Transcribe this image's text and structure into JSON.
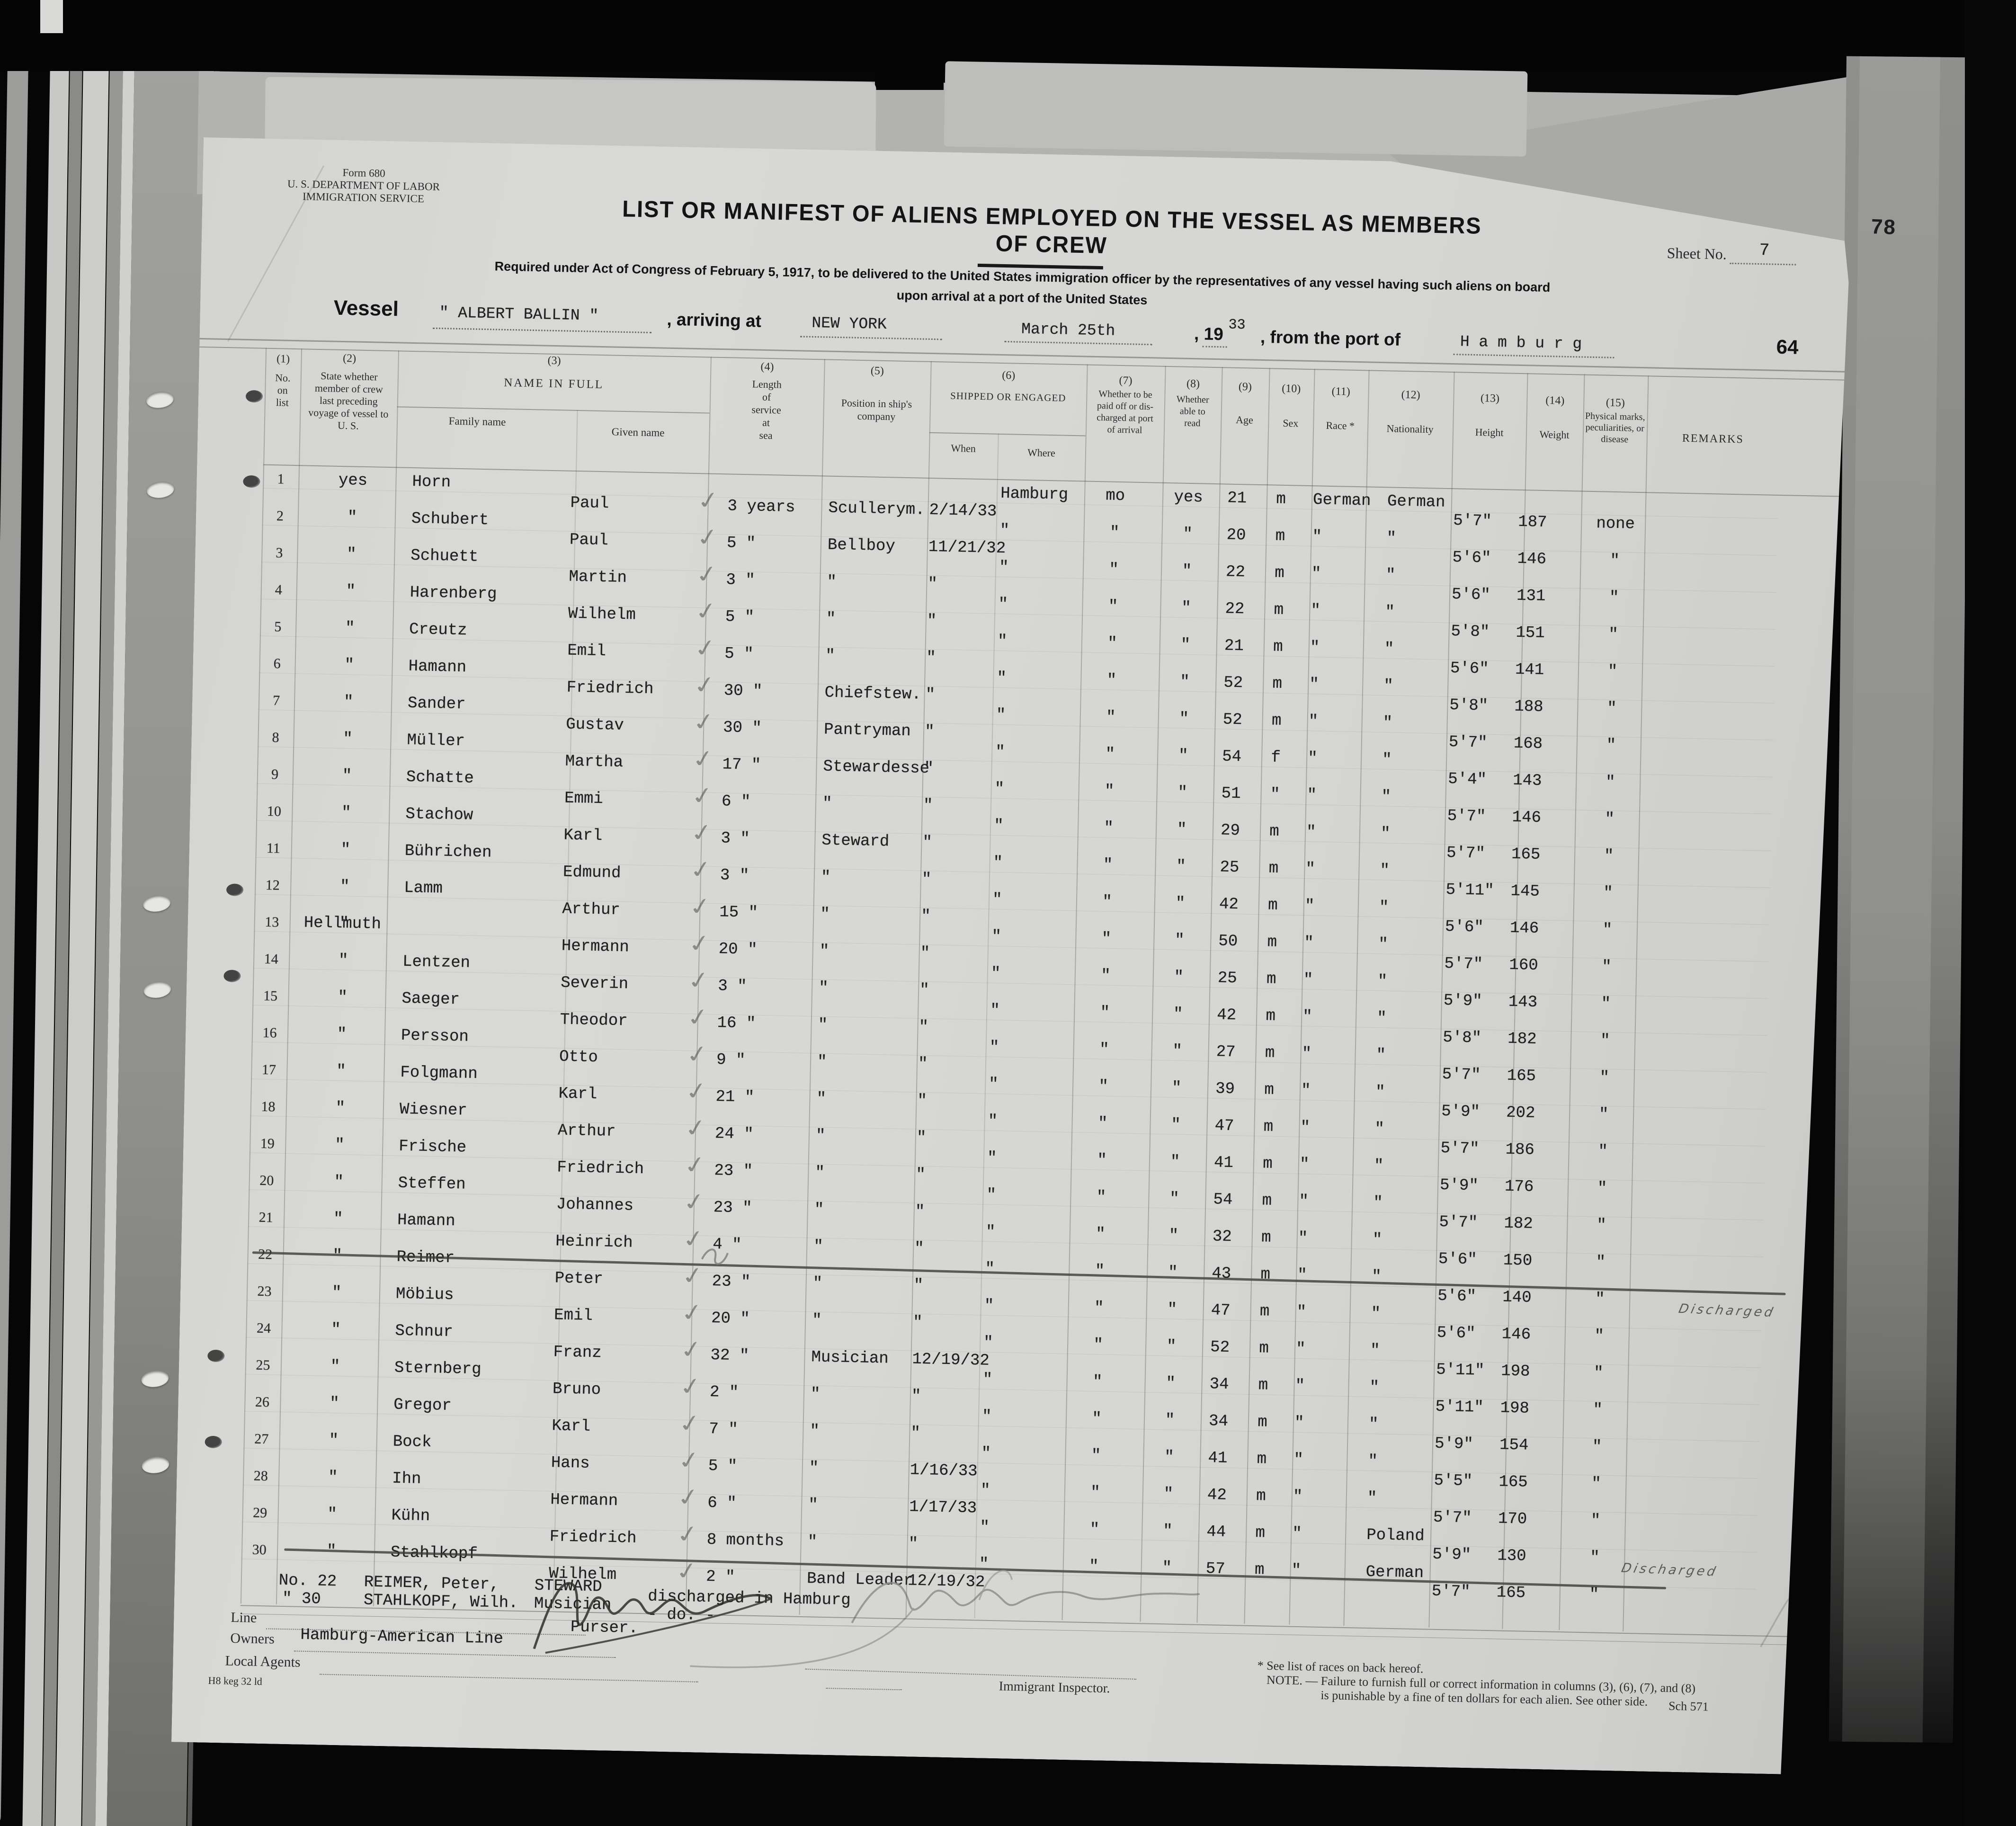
{
  "meta": {
    "colors": {
      "paper": "#d6d6d4",
      "typed_ink": "#1f1f1f",
      "printed_ink": "#2b2b2b",
      "pencil": "#8e8e8c"
    }
  },
  "form": {
    "form_no": "Form 680",
    "agency1": "U. S. DEPARTMENT OF LABOR",
    "agency2": "IMMIGRATION SERVICE",
    "title": "LIST OR MANIFEST OF ALIENS EMPLOYED ON THE VESSEL AS MEMBERS OF CREW",
    "subtitle1": "Required under Act of Congress of February 5, 1917, to be delivered to the United States immigration officer by the representatives of any vessel having such aliens on board",
    "subtitle2": "upon arrival at a port of the United States",
    "sheet_label": "Sheet No.",
    "sheet_value": "7",
    "page_stamp": "78",
    "page_number": "64",
    "small_mark": "o",
    "vessel_label": "Vessel",
    "vessel_value": "\" ALBERT BALLIN \"",
    "arriving_label": ", arriving at",
    "arriving_value": "NEW YORK",
    "date_value": "March  25th",
    "year_label": ", 19",
    "year_value": "33",
    "port_label": ", from the port of",
    "port_value": "H a m b u r g"
  },
  "columns": {
    "c1_num": "(1)",
    "c1": "No.\non\nlist",
    "c2_num": "(2)",
    "c2": "State whether\nmember of crew\nlast preceding\nvoyage of vessel to\nU. S.",
    "c3_num": "(3)",
    "c3": "NAME IN FULL",
    "c3a": "Family name",
    "c3b": "Given name",
    "c4_num": "(4)",
    "c4": "Length\nof\nservice\nat\nsea",
    "c5_num": "(5)",
    "c5": "Position in ship's\ncompany",
    "c6_num": "(6)",
    "c6": "SHIPPED OR ENGAGED",
    "c6a": "When",
    "c6b": "Where",
    "c7_num": "(7)",
    "c7": "Whether to be\npaid off or dis-\ncharged at port\nof arrival",
    "c8_num": "(8)",
    "c8": "Whether\nable to\nread",
    "c9_num": "(9)",
    "c9": "Age",
    "c10_num": "(10)",
    "c10": "Sex",
    "c11_num": "(11)",
    "c11": "Race *",
    "c12_num": "(12)",
    "c12": "Nationality",
    "c13_num": "(13)",
    "c13": "Height",
    "c14_num": "(14)",
    "c14": "Weight",
    "c15_num": "(15)",
    "c15": "Physical marks,\npeculiarities, or\ndisease",
    "c16": "REMARKS"
  },
  "rows": [
    {
      "no": "1",
      "state": "yes",
      "family": "Horn",
      "given": "Paul",
      "svc": "3 years",
      "pos": "Scullerym.",
      "when": "2/14/33",
      "where": "Hamburg",
      "paid": "mo",
      "read": "yes",
      "age": "21",
      "sex": "m",
      "race": "German",
      "nat": "German",
      "ht": "5'7\"",
      "wt": "187",
      "marks": "none",
      "struck": false
    },
    {
      "no": "2",
      "state": "\"",
      "family": "Schubert",
      "given": "Paul",
      "svc": "5 \"",
      "pos": "Bellboy",
      "when": "11/21/32",
      "where": "\"",
      "paid": "\"",
      "read": "\"",
      "age": "20",
      "sex": "m",
      "race": "\"",
      "nat": "\"",
      "ht": "5'6\"",
      "wt": "146",
      "marks": "\"",
      "struck": false
    },
    {
      "no": "3",
      "state": "\"",
      "family": "Schuett",
      "given": "Martin",
      "svc": "3 \"",
      "pos": "\"",
      "when": "\"",
      "where": "\"",
      "paid": "\"",
      "read": "\"",
      "age": "22",
      "sex": "m",
      "race": "\"",
      "nat": "\"",
      "ht": "5'6\"",
      "wt": "131",
      "marks": "\"",
      "struck": false
    },
    {
      "no": "4",
      "state": "\"",
      "family": "Harenberg",
      "given": "Wilhelm",
      "svc": "5 \"",
      "pos": "\"",
      "when": "\"",
      "where": "\"",
      "paid": "\"",
      "read": "\"",
      "age": "22",
      "sex": "m",
      "race": "\"",
      "nat": "\"",
      "ht": "5'8\"",
      "wt": "151",
      "marks": "\"",
      "struck": false
    },
    {
      "no": "5",
      "state": "\"",
      "family": "Creutz",
      "given": "Emil",
      "svc": "5 \"",
      "pos": "\"",
      "when": "\"",
      "where": "\"",
      "paid": "\"",
      "read": "\"",
      "age": "21",
      "sex": "m",
      "race": "\"",
      "nat": "\"",
      "ht": "5'6\"",
      "wt": "141",
      "marks": "\"",
      "struck": false
    },
    {
      "no": "6",
      "state": "\"",
      "family": "Hamann",
      "given": "Friedrich",
      "svc": "30 \"",
      "pos": "Chiefstew.",
      "when": "\"",
      "where": "\"",
      "paid": "\"",
      "read": "\"",
      "age": "52",
      "sex": "m",
      "race": "\"",
      "nat": "\"",
      "ht": "5'8\"",
      "wt": "188",
      "marks": "\"",
      "struck": false
    },
    {
      "no": "7",
      "state": "\"",
      "family": "Sander",
      "given": "Gustav",
      "svc": "30 \"",
      "pos": "Pantryman",
      "when": "\"",
      "where": "\"",
      "paid": "\"",
      "read": "\"",
      "age": "52",
      "sex": "m",
      "race": "\"",
      "nat": "\"",
      "ht": "5'7\"",
      "wt": "168",
      "marks": "\"",
      "struck": false
    },
    {
      "no": "8",
      "state": "\"",
      "family": "Müller",
      "given": "Martha",
      "svc": "17 \"",
      "pos": "Stewardesse",
      "when": "\"",
      "where": "\"",
      "paid": "\"",
      "read": "\"",
      "age": "54",
      "sex": "f",
      "race": "\"",
      "nat": "\"",
      "ht": "5'4\"",
      "wt": "143",
      "marks": "\"",
      "struck": false
    },
    {
      "no": "9",
      "state": "\"",
      "family": "Schatte",
      "given": "Emmi",
      "svc": "6 \"",
      "pos": "\"",
      "when": "\"",
      "where": "\"",
      "paid": "\"",
      "read": "\"",
      "age": "51",
      "sex": "\"",
      "race": "\"",
      "nat": "\"",
      "ht": "5'7\"",
      "wt": "146",
      "marks": "\"",
      "struck": false
    },
    {
      "no": "10",
      "state": "\"",
      "family": "Stachow",
      "given": "Karl",
      "svc": "3 \"",
      "pos": "Steward",
      "when": "\"",
      "where": "\"",
      "paid": "\"",
      "read": "\"",
      "age": "29",
      "sex": "m",
      "race": "\"",
      "nat": "\"",
      "ht": "5'7\"",
      "wt": "165",
      "marks": "\"",
      "struck": false
    },
    {
      "no": "11",
      "state": "\"",
      "family": "Bührichen",
      "given": "Edmund",
      "svc": "3 \"",
      "pos": "\"",
      "when": "\"",
      "where": "\"",
      "paid": "\"",
      "read": "\"",
      "age": "25",
      "sex": "m",
      "race": "\"",
      "nat": "\"",
      "ht": "5'11\"",
      "wt": "145",
      "marks": "\"",
      "struck": false
    },
    {
      "no": "12",
      "state": "\"",
      "family": "Lamm",
      "given": "Arthur",
      "svc": "15 \"",
      "pos": "\"",
      "when": "\"",
      "where": "\"",
      "paid": "\"",
      "read": "\"",
      "age": "42",
      "sex": "m",
      "race": "\"",
      "nat": "\"",
      "ht": "5'6\"",
      "wt": "146",
      "marks": "\"",
      "struck": false
    },
    {
      "no": "13",
      "state": "\"",
      "family": "Hellmuth",
      "given": "Hermann",
      "svc": "20 \"",
      "pos": "\"",
      "when": "\"",
      "where": "\"",
      "paid": "\"",
      "read": "\"",
      "age": "50",
      "sex": "m",
      "race": "\"",
      "nat": "\"",
      "ht": "5'7\"",
      "wt": "160",
      "marks": "\"",
      "struck": false,
      "fam_shift": true
    },
    {
      "no": "14",
      "state": "\"",
      "family": "Lentzen",
      "given": "Severin",
      "svc": "3 \"",
      "pos": "\"",
      "when": "\"",
      "where": "\"",
      "paid": "\"",
      "read": "\"",
      "age": "25",
      "sex": "m",
      "race": "\"",
      "nat": "\"",
      "ht": "5'9\"",
      "wt": "143",
      "marks": "\"",
      "struck": false
    },
    {
      "no": "15",
      "state": "\"",
      "family": "Saeger",
      "given": "Theodor",
      "svc": "16 \"",
      "pos": "\"",
      "when": "\"",
      "where": "\"",
      "paid": "\"",
      "read": "\"",
      "age": "42",
      "sex": "m",
      "race": "\"",
      "nat": "\"",
      "ht": "5'8\"",
      "wt": "182",
      "marks": "\"",
      "struck": false
    },
    {
      "no": "16",
      "state": "\"",
      "family": "Persson",
      "given": "Otto",
      "svc": "9 \"",
      "pos": "\"",
      "when": "\"",
      "where": "\"",
      "paid": "\"",
      "read": "\"",
      "age": "27",
      "sex": "m",
      "race": "\"",
      "nat": "\"",
      "ht": "5'7\"",
      "wt": "165",
      "marks": "\"",
      "struck": false
    },
    {
      "no": "17",
      "state": "\"",
      "family": "Folgmann",
      "given": "Karl",
      "svc": "21 \"",
      "pos": "\"",
      "when": "\"",
      "where": "\"",
      "paid": "\"",
      "read": "\"",
      "age": "39",
      "sex": "m",
      "race": "\"",
      "nat": "\"",
      "ht": "5'9\"",
      "wt": "202",
      "marks": "\"",
      "struck": false
    },
    {
      "no": "18",
      "state": "\"",
      "family": "Wiesner",
      "given": "Arthur",
      "svc": "24 \"",
      "pos": "\"",
      "when": "\"",
      "where": "\"",
      "paid": "\"",
      "read": "\"",
      "age": "47",
      "sex": "m",
      "race": "\"",
      "nat": "\"",
      "ht": "5'7\"",
      "wt": "186",
      "marks": "\"",
      "struck": false
    },
    {
      "no": "19",
      "state": "\"",
      "family": "Frische",
      "given": "Friedrich",
      "svc": "23 \"",
      "pos": "\"",
      "when": "\"",
      "where": "\"",
      "paid": "\"",
      "read": "\"",
      "age": "41",
      "sex": "m",
      "race": "\"",
      "nat": "\"",
      "ht": "5'9\"",
      "wt": "176",
      "marks": "\"",
      "struck": false
    },
    {
      "no": "20",
      "state": "\"",
      "family": "Steffen",
      "given": "Johannes",
      "svc": "23 \"",
      "pos": "\"",
      "when": "\"",
      "where": "\"",
      "paid": "\"",
      "read": "\"",
      "age": "54",
      "sex": "m",
      "race": "\"",
      "nat": "\"",
      "ht": "5'7\"",
      "wt": "182",
      "marks": "\"",
      "struck": false
    },
    {
      "no": "21",
      "state": "\"",
      "family": "Hamann",
      "given": "Heinrich",
      "svc": "4 \"",
      "pos": "\"",
      "when": "\"",
      "where": "\"",
      "paid": "\"",
      "read": "\"",
      "age": "32",
      "sex": "m",
      "race": "\"",
      "nat": "\"",
      "ht": "5'6\"",
      "wt": "150",
      "marks": "\"",
      "struck": false
    },
    {
      "no": "22",
      "state": "\"",
      "family": "Reimer",
      "given": "Peter",
      "svc": "23 \"",
      "pos": "\"",
      "when": "\"",
      "where": "\"",
      "paid": "\"",
      "read": "\"",
      "age": "43",
      "sex": "m",
      "race": "\"",
      "nat": "\"",
      "ht": "5'6\"",
      "wt": "140",
      "marks": "\"",
      "struck": true
    },
    {
      "no": "23",
      "state": "\"",
      "family": "Möbius",
      "given": "Emil",
      "svc": "20 \"",
      "pos": "\"",
      "when": "\"",
      "where": "\"",
      "paid": "\"",
      "read": "\"",
      "age": "47",
      "sex": "m",
      "race": "\"",
      "nat": "\"",
      "ht": "5'6\"",
      "wt": "146",
      "marks": "\"",
      "struck": false
    },
    {
      "no": "24",
      "state": "\"",
      "family": "Schnur",
      "given": "Franz",
      "svc": "32 \"",
      "pos": "Musician",
      "when": "12/19/32",
      "where": "\"",
      "paid": "\"",
      "read": "\"",
      "age": "52",
      "sex": "m",
      "race": "\"",
      "nat": "\"",
      "ht": "5'11\"",
      "wt": "198",
      "marks": "\"",
      "struck": false
    },
    {
      "no": "25",
      "state": "\"",
      "family": "Sternberg",
      "given": "Bruno",
      "svc": "2 \"",
      "pos": "\"",
      "when": "\"",
      "where": "\"",
      "paid": "\"",
      "read": "\"",
      "age": "34",
      "sex": "m",
      "race": "\"",
      "nat": "\"",
      "ht": "5'11\"",
      "wt": "198",
      "marks": "\"",
      "struck": false
    },
    {
      "no": "26",
      "state": "\"",
      "family": "Gregor",
      "given": "Karl",
      "svc": "7 \"",
      "pos": "\"",
      "when": "\"",
      "where": "\"",
      "paid": "\"",
      "read": "\"",
      "age": "34",
      "sex": "m",
      "race": "\"",
      "nat": "\"",
      "ht": "5'9\"",
      "wt": "154",
      "marks": "\"",
      "struck": false
    },
    {
      "no": "27",
      "state": "\"",
      "family": "Bock",
      "given": "Hans",
      "svc": "5 \"",
      "pos": "\"",
      "when": "1/16/33",
      "where": "\"",
      "paid": "\"",
      "read": "\"",
      "age": "41",
      "sex": "m",
      "race": "\"",
      "nat": "\"",
      "ht": "5'5\"",
      "wt": "165",
      "marks": "\"",
      "struck": false
    },
    {
      "no": "28",
      "state": "\"",
      "family": "Ihn",
      "given": "Hermann",
      "svc": "6 \"",
      "pos": "\"",
      "when": "1/17/33",
      "where": "\"",
      "paid": "\"",
      "read": "\"",
      "age": "42",
      "sex": "m",
      "race": "\"",
      "nat": "\"",
      "ht": "5'7\"",
      "wt": "170",
      "marks": "\"",
      "struck": false
    },
    {
      "no": "29",
      "state": "\"",
      "family": "Kühn",
      "given": "Friedrich",
      "svc": "8 months",
      "pos": "\"",
      "when": "\"",
      "where": "\"",
      "paid": "\"",
      "read": "\"",
      "age": "44",
      "sex": "m",
      "race": "\"",
      "nat": "Poland",
      "ht": "5'9\"",
      "wt": "130",
      "marks": "\"",
      "struck": false
    },
    {
      "no": "30",
      "state": "\"",
      "family": "Stahlkopf",
      "given": "Wilhelm",
      "svc": "2 \"",
      "pos": "Band Leader",
      "when": "12/19/32",
      "where": "\"",
      "paid": "\"",
      "read": "\"",
      "age": "57",
      "sex": "m",
      "race": "\"",
      "nat": "German",
      "ht": "5'7\"",
      "wt": "165",
      "marks": "\"",
      "struck": true
    }
  ],
  "notes": {
    "n1_no": "No. 22",
    "n1_name": "REIMER, Peter,",
    "n1_pos": "STEWARD",
    "n1_text": "discharged in Hamburg",
    "n2_no": "\"   30",
    "n2_name": "STAHLKOPF, Wilh.",
    "n2_pos": "Musician",
    "n2_text": "-      do.     -",
    "discharged_label": "Discharged"
  },
  "footer": {
    "line_label": "Line",
    "purser_label": "Purser.",
    "owners_label": "Owners",
    "owners_value": "Hamburg-American Line",
    "agents_label": "Local Agents",
    "print_code": "H8 keg 32 ld",
    "inspector_label": "Immigrant Inspector.",
    "races_note": "* See list of races on back hereof.",
    "note_line1": "NOTE. — Failure to furnish full or correct information in columns (3), (6), (7), and (8)",
    "note_line2": "is punishable by a fine of ten dollars for each alien.  See other side.",
    "sch": "Sch 571"
  }
}
